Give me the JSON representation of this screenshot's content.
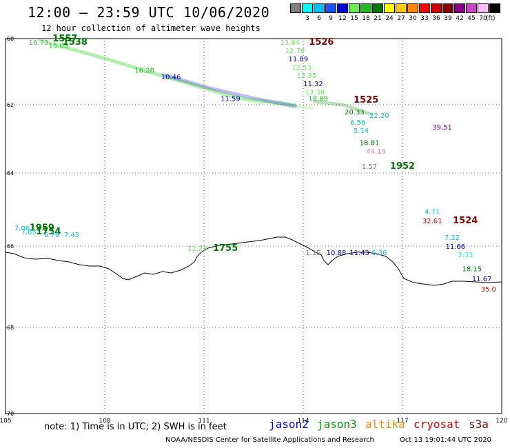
{
  "header": {
    "title": "12:00 – 23:59 UTC 10/06/2020",
    "subtitle": "12 hour collection of altimeter wave heights"
  },
  "legend": {
    "unit": "(ft)",
    "bins": [
      {
        "label": "",
        "color": "#7f7f7f"
      },
      {
        "label": "3",
        "color": "#00ffff"
      },
      {
        "label": "6",
        "color": "#00bfff"
      },
      {
        "label": "9",
        "color": "#1f4fff"
      },
      {
        "label": "12",
        "color": "#0000cc"
      },
      {
        "label": "15",
        "color": "#66ee55"
      },
      {
        "label": "18",
        "color": "#22bb22"
      },
      {
        "label": "21",
        "color": "#007700"
      },
      {
        "label": "24",
        "color": "#ffff00"
      },
      {
        "label": "27",
        "color": "#ffcc00"
      },
      {
        "label": "30",
        "color": "#ff8800"
      },
      {
        "label": "33",
        "color": "#ff0000"
      },
      {
        "label": "36",
        "color": "#cc0000"
      },
      {
        "label": "39",
        "color": "#880000"
      },
      {
        "label": "42",
        "color": "#880088"
      },
      {
        "label": "45",
        "color": "#cc44cc"
      },
      {
        "label": "70",
        "color": "#ffbbff"
      },
      {
        "label": "",
        "color": "#000000"
      }
    ]
  },
  "axes": {
    "lon_ticks": [
      "105",
      "108",
      "111",
      "114",
      "117",
      "120"
    ],
    "lat_ticks": [
      "-60",
      "-62",
      "-64",
      "-66",
      "-68",
      "-70"
    ]
  },
  "annotations": [
    {
      "text": "16.73",
      "lon": 106.0,
      "lat": -60.1,
      "color": "#44bb44"
    },
    {
      "text": "1557",
      "lon": 106.8,
      "lat": -60.0,
      "color": "#007700",
      "bold": true
    },
    {
      "text": "1538",
      "lon": 107.1,
      "lat": -60.1,
      "color": "#007700",
      "bold": true
    },
    {
      "text": "15.03",
      "lon": 106.6,
      "lat": -60.2,
      "color": "#22bb22"
    },
    {
      "text": "16.28",
      "lon": 109.2,
      "lat": -60.95,
      "color": "#22bb22"
    },
    {
      "text": "10.46",
      "lon": 110.0,
      "lat": -61.15,
      "color": "#0000cc"
    },
    {
      "text": "11.59",
      "lon": 111.8,
      "lat": -61.8,
      "color": "#0000cc"
    },
    {
      "text": "13.84",
      "lon": 113.6,
      "lat": -60.1,
      "color": "#66ee55"
    },
    {
      "text": "1526",
      "lon": 114.55,
      "lat": -60.1,
      "color": "#880000",
      "bold": true
    },
    {
      "text": "12.79",
      "lon": 113.75,
      "lat": -60.35,
      "color": "#66ee55"
    },
    {
      "text": "11.89",
      "lon": 113.85,
      "lat": -60.6,
      "color": "#0000cc"
    },
    {
      "text": "12.53",
      "lon": 113.95,
      "lat": -60.85,
      "color": "#66ee55"
    },
    {
      "text": "12.35",
      "lon": 114.1,
      "lat": -61.1,
      "color": "#66ee55"
    },
    {
      "text": "11.32",
      "lon": 114.3,
      "lat": -61.35,
      "color": "#0000cc"
    },
    {
      "text": "13.38",
      "lon": 114.35,
      "lat": -61.6,
      "color": "#66ee55"
    },
    {
      "text": "18.89",
      "lon": 114.45,
      "lat": -61.8,
      "color": "#22bb22"
    },
    {
      "text": "1525",
      "lon": 115.9,
      "lat": -61.85,
      "color": "#880000",
      "bold": true
    },
    {
      "text": "20.33",
      "lon": 115.55,
      "lat": -62.2,
      "color": "#007700"
    },
    {
      "text": "22.20",
      "lon": 116.3,
      "lat": -62.3,
      "color": "#00bfff"
    },
    {
      "text": "6.56",
      "lon": 115.65,
      "lat": -62.5,
      "color": "#00bfff"
    },
    {
      "text": "5.14",
      "lon": 115.75,
      "lat": -62.75,
      "color": "#00bfff"
    },
    {
      "text": "18.81",
      "lon": 116.0,
      "lat": -63.1,
      "color": "#007700"
    },
    {
      "text": "44.19",
      "lon": 116.2,
      "lat": -63.35,
      "color": "#cc88cc"
    },
    {
      "text": "1.57",
      "lon": 116.0,
      "lat": -63.8,
      "color": "#7f7f7f"
    },
    {
      "text": "1952",
      "lon": 117.0,
      "lat": -63.8,
      "color": "#007700",
      "bold": true
    },
    {
      "text": "39.51",
      "lon": 118.2,
      "lat": -62.65,
      "color": "#880088"
    },
    {
      "text": "7.06",
      "lon": 105.5,
      "lat": -65.5,
      "color": "#00bfff"
    },
    {
      "text": "1959",
      "lon": 106.1,
      "lat": -65.5,
      "color": "#007700",
      "bold": true
    },
    {
      "text": "7.63",
      "lon": 105.7,
      "lat": -65.6,
      "color": "#00bfff"
    },
    {
      "text": "1754",
      "lon": 106.3,
      "lat": -65.6,
      "color": "#007700",
      "bold": true
    },
    {
      "text": "6.79",
      "lon": 106.4,
      "lat": -65.68,
      "color": "#00bfff"
    },
    {
      "text": "7.43",
      "lon": 107.0,
      "lat": -65.68,
      "color": "#00bfff"
    },
    {
      "text": "12.23",
      "lon": 110.8,
      "lat": -66.05,
      "color": "#66ee55"
    },
    {
      "text": "1755",
      "lon": 111.65,
      "lat": -66.05,
      "color": "#007700",
      "bold": true
    },
    {
      "text": "1.15",
      "lon": 114.3,
      "lat": -66.15,
      "color": "#7f7f7f"
    },
    {
      "text": "10.88",
      "lon": 115.0,
      "lat": -66.15,
      "color": "#0000cc"
    },
    {
      "text": "11.43",
      "lon": 115.7,
      "lat": -66.15,
      "color": "#0000cc"
    },
    {
      "text": "6.36",
      "lon": 116.3,
      "lat": -66.15,
      "color": "#00bfff"
    },
    {
      "text": "4.71",
      "lon": 117.9,
      "lat": -65.05,
      "color": "#00bfff"
    },
    {
      "text": "32.61",
      "lon": 117.9,
      "lat": -65.3,
      "color": "#cc0000"
    },
    {
      "text": "1524",
      "lon": 118.9,
      "lat": -65.3,
      "color": "#880000",
      "bold": true
    },
    {
      "text": "7.22",
      "lon": 118.5,
      "lat": -65.75,
      "color": "#00bfff"
    },
    {
      "text": "11.66",
      "lon": 118.6,
      "lat": -66.0,
      "color": "#0000cc"
    },
    {
      "text": "3.33",
      "lon": 118.9,
      "lat": -66.2,
      "color": "#00ffff"
    },
    {
      "text": "18.15",
      "lon": 119.1,
      "lat": -66.55,
      "color": "#007700"
    },
    {
      "text": "11.67",
      "lon": 119.4,
      "lat": -66.8,
      "color": "#0000cc"
    },
    {
      "text": "35.0",
      "lon": 119.6,
      "lat": -67.05,
      "color": "#cc0000"
    }
  ],
  "footer": {
    "note": "note: 1) Time is in UTC; 2) SWH is in feet",
    "satellites": [
      {
        "name": "jason2",
        "color": "#0000cc"
      },
      {
        "name": "jason3",
        "color": "#009900"
      },
      {
        "name": "altika",
        "color": "#ff8800"
      },
      {
        "name": "cryosat",
        "color": "#cc0000"
      },
      {
        "name": "s3a",
        "color": "#880000"
      }
    ],
    "credit": "NOAA/NESDIS Center for Satellite Applications and Research",
    "timestamp": "Oct 13 19:01:44 UTC 2020"
  }
}
